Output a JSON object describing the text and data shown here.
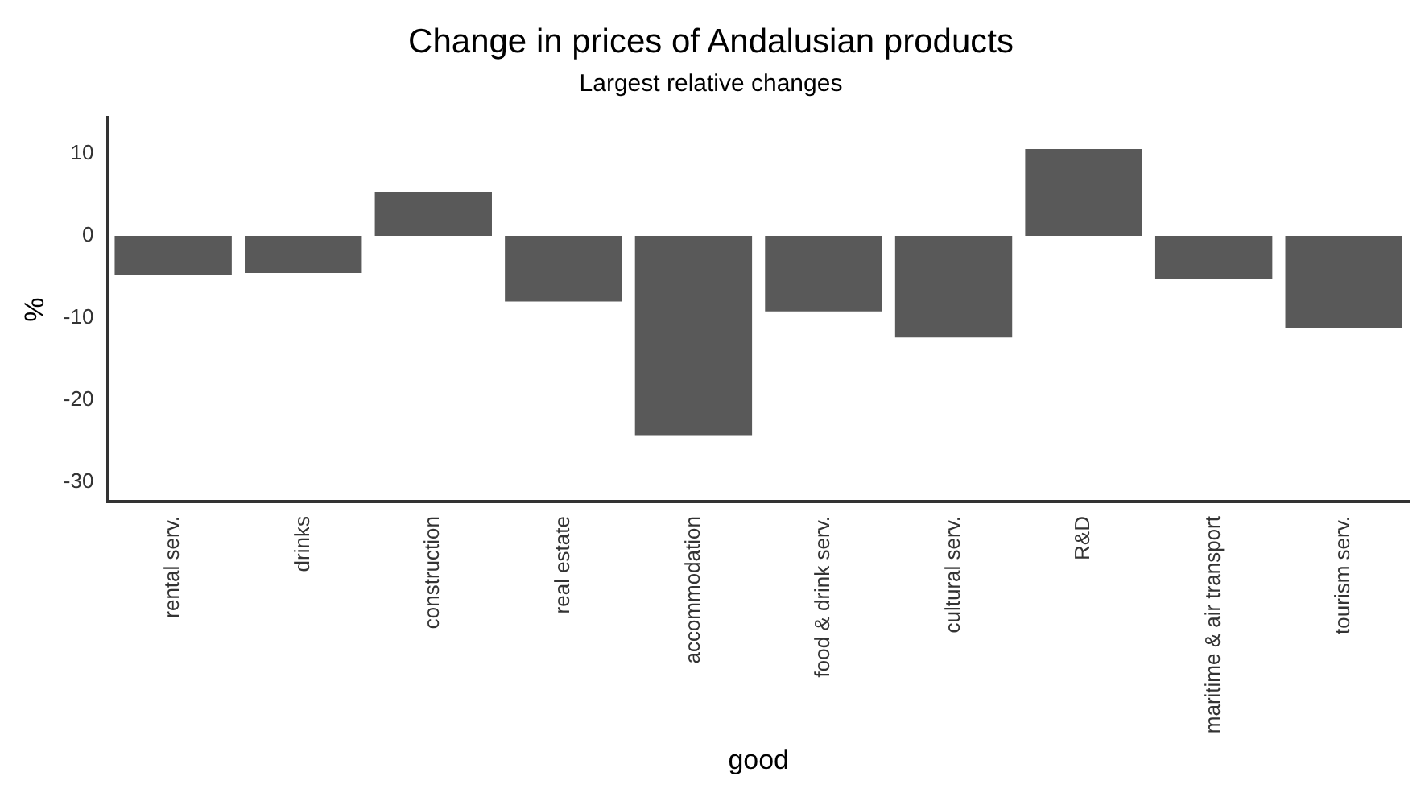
{
  "chart_data": {
    "type": "bar",
    "title": "Change in prices of Andalusian products",
    "subtitle": "Largest relative changes",
    "xlabel": "good",
    "ylabel": "%",
    "categories": [
      "rental serv.",
      "drinks",
      "construction",
      "real estate",
      "accommodation",
      "food & drink serv.",
      "cultural serv.",
      "R&D",
      "maritime & air transport",
      "tourism serv."
    ],
    "values": [
      -4.8,
      -4.5,
      5.3,
      -8,
      -24.3,
      -9.2,
      -12.4,
      10.6,
      -5.2,
      -11.2
    ],
    "color": "#595959",
    "ylim": [
      -32.4,
      14.4
    ],
    "yticks": [
      -30,
      -20,
      -10,
      0,
      10
    ],
    "grid": false,
    "legend": false
  }
}
